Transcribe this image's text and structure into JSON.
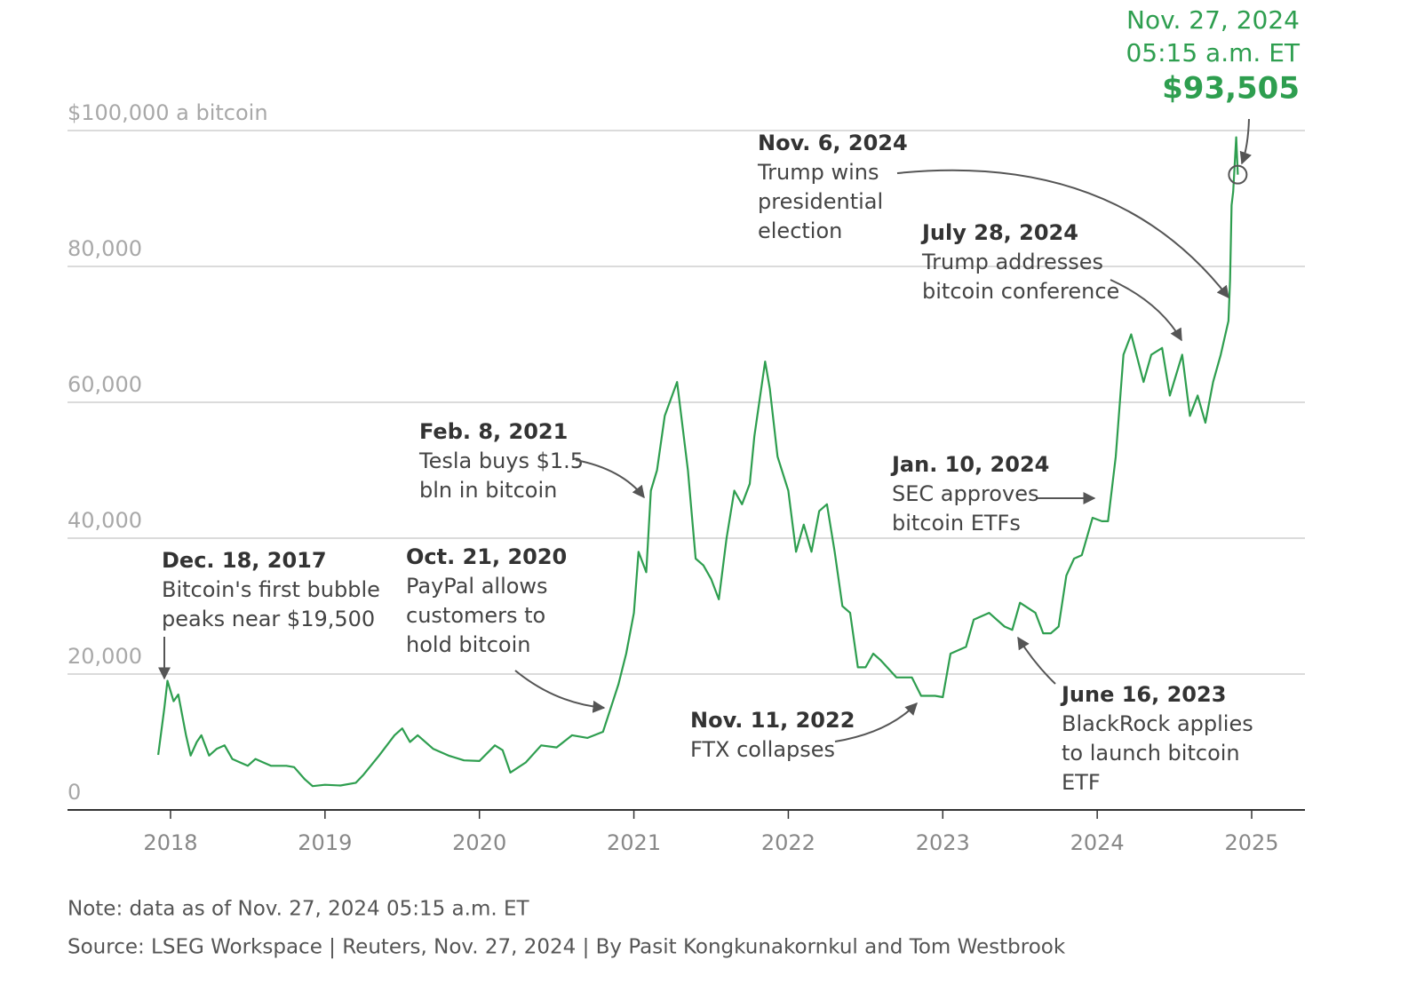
{
  "chart_data": {
    "type": "line",
    "xlim": [
      2017.333,
      2025.345
    ],
    "xticks": [
      2018,
      2019,
      2020,
      2021,
      2022,
      2023,
      2024,
      2025
    ],
    "ylim": [
      0,
      100000
    ],
    "yticks": [
      0,
      {
        "value": 20000,
        "label": "20,000"
      },
      {
        "value": 40000,
        "label": "40,000"
      },
      {
        "value": 60000,
        "label": "60,000"
      },
      {
        "value": 80000,
        "label": "80,000"
      },
      {
        "value": 100000,
        "label": "$100,000 a bitcoin"
      }
    ],
    "grid": true,
    "series": [
      {
        "color": "#2e9e4f",
        "x": [
          2017.92,
          2017.96,
          2017.98,
          2018.02,
          2018.05,
          2018.1,
          2018.13,
          2018.17,
          2018.2,
          2018.25,
          2018.3,
          2018.35,
          2018.4,
          2018.45,
          2018.5,
          2018.55,
          2018.6,
          2018.65,
          2018.7,
          2018.75,
          2018.8,
          2018.87,
          2018.92,
          2019.0,
          2019.1,
          2019.2,
          2019.25,
          2019.35,
          2019.45,
          2019.5,
          2019.55,
          2019.6,
          2019.7,
          2019.8,
          2019.9,
          2020.0,
          2020.1,
          2020.15,
          2020.2,
          2020.3,
          2020.4,
          2020.5,
          2020.6,
          2020.7,
          2020.8,
          2020.85,
          2020.9,
          2020.95,
          2021.0,
          2021.03,
          2021.08,
          2021.11,
          2021.15,
          2021.2,
          2021.28,
          2021.35,
          2021.4,
          2021.45,
          2021.5,
          2021.55,
          2021.6,
          2021.65,
          2021.7,
          2021.75,
          2021.78,
          2021.85,
          2021.88,
          2021.93,
          2022.0,
          2022.05,
          2022.1,
          2022.15,
          2022.2,
          2022.25,
          2022.3,
          2022.35,
          2022.4,
          2022.45,
          2022.5,
          2022.55,
          2022.6,
          2022.7,
          2022.8,
          2022.86,
          2022.95,
          2023.0,
          2023.05,
          2023.15,
          2023.2,
          2023.3,
          2023.4,
          2023.45,
          2023.5,
          2023.6,
          2023.65,
          2023.7,
          2023.75,
          2023.8,
          2023.85,
          2023.9,
          2023.97,
          2024.03,
          2024.07,
          2024.12,
          2024.17,
          2024.22,
          2024.3,
          2024.35,
          2024.42,
          2024.47,
          2024.55,
          2024.6,
          2024.65,
          2024.7,
          2024.75,
          2024.8,
          2024.85,
          2024.86,
          2024.87,
          2024.88,
          2024.9,
          2024.91
        ],
        "values": [
          8100,
          15000,
          19000,
          16000,
          17000,
          11000,
          8000,
          10000,
          11000,
          8000,
          9000,
          9500,
          7500,
          7000,
          6500,
          7500,
          7000,
          6500,
          6500,
          6500,
          6300,
          4500,
          3500,
          3700,
          3600,
          4000,
          5200,
          8000,
          11000,
          12000,
          10000,
          11000,
          9000,
          8000,
          7300,
          7200,
          9500,
          8800,
          5500,
          7000,
          9500,
          9200,
          11000,
          10600,
          11500,
          15000,
          18500,
          23000,
          29000,
          38000,
          35000,
          47000,
          50000,
          58000,
          63000,
          50000,
          37000,
          36000,
          34000,
          31000,
          40000,
          47000,
          45000,
          48000,
          55000,
          66000,
          62000,
          52000,
          47000,
          38000,
          42000,
          38000,
          44000,
          45000,
          38000,
          30000,
          29000,
          21000,
          21000,
          23000,
          22000,
          19500,
          19500,
          16800,
          16800,
          16600,
          23000,
          24000,
          28000,
          29000,
          27000,
          26500,
          30500,
          29000,
          26000,
          26000,
          27000,
          34500,
          37000,
          37500,
          43000,
          42500,
          42500,
          52000,
          67000,
          70000,
          63000,
          67000,
          68000,
          61000,
          67000,
          58000,
          61000,
          57000,
          63000,
          67000,
          72000,
          78000,
          89000,
          91000,
          99000,
          93505
        ]
      }
    ],
    "current": {
      "date": "Nov. 27, 2024",
      "time": "05:15 a.m. ET",
      "label": "$93,505"
    },
    "annotations": [
      {
        "date": "Dec. 18, 2017",
        "text": [
          "Bitcoin's first bubble",
          "peaks near $19,500"
        ]
      },
      {
        "date": "Oct. 21, 2020",
        "text": [
          "PayPal allows",
          "customers to",
          "hold bitcoin"
        ]
      },
      {
        "date": "Feb. 8, 2021",
        "text": [
          "Tesla buys $1.5",
          "bln in bitcoin"
        ]
      },
      {
        "date": "Nov. 11, 2022",
        "text": [
          "FTX collapses"
        ]
      },
      {
        "date": "Jan. 10, 2024",
        "text": [
          "SEC approves",
          "bitcoin ETFs"
        ]
      },
      {
        "date": "June 16, 2023",
        "text": [
          "BlackRock applies",
          "to launch bitcoin",
          "ETF"
        ]
      },
      {
        "date": "July 28, 2024",
        "text": [
          "Trump addresses",
          "bitcoin conference"
        ]
      },
      {
        "date": "Nov. 6, 2024",
        "text": [
          "Trump wins",
          "presidential",
          "election"
        ]
      }
    ],
    "note": "Note: data as of Nov. 27, 2024 05:15 a.m. ET",
    "source": "Source: LSEG Workspace | Reuters, Nov. 27, 2024 | By Pasit Kongkunakornkul and Tom Westbrook"
  }
}
